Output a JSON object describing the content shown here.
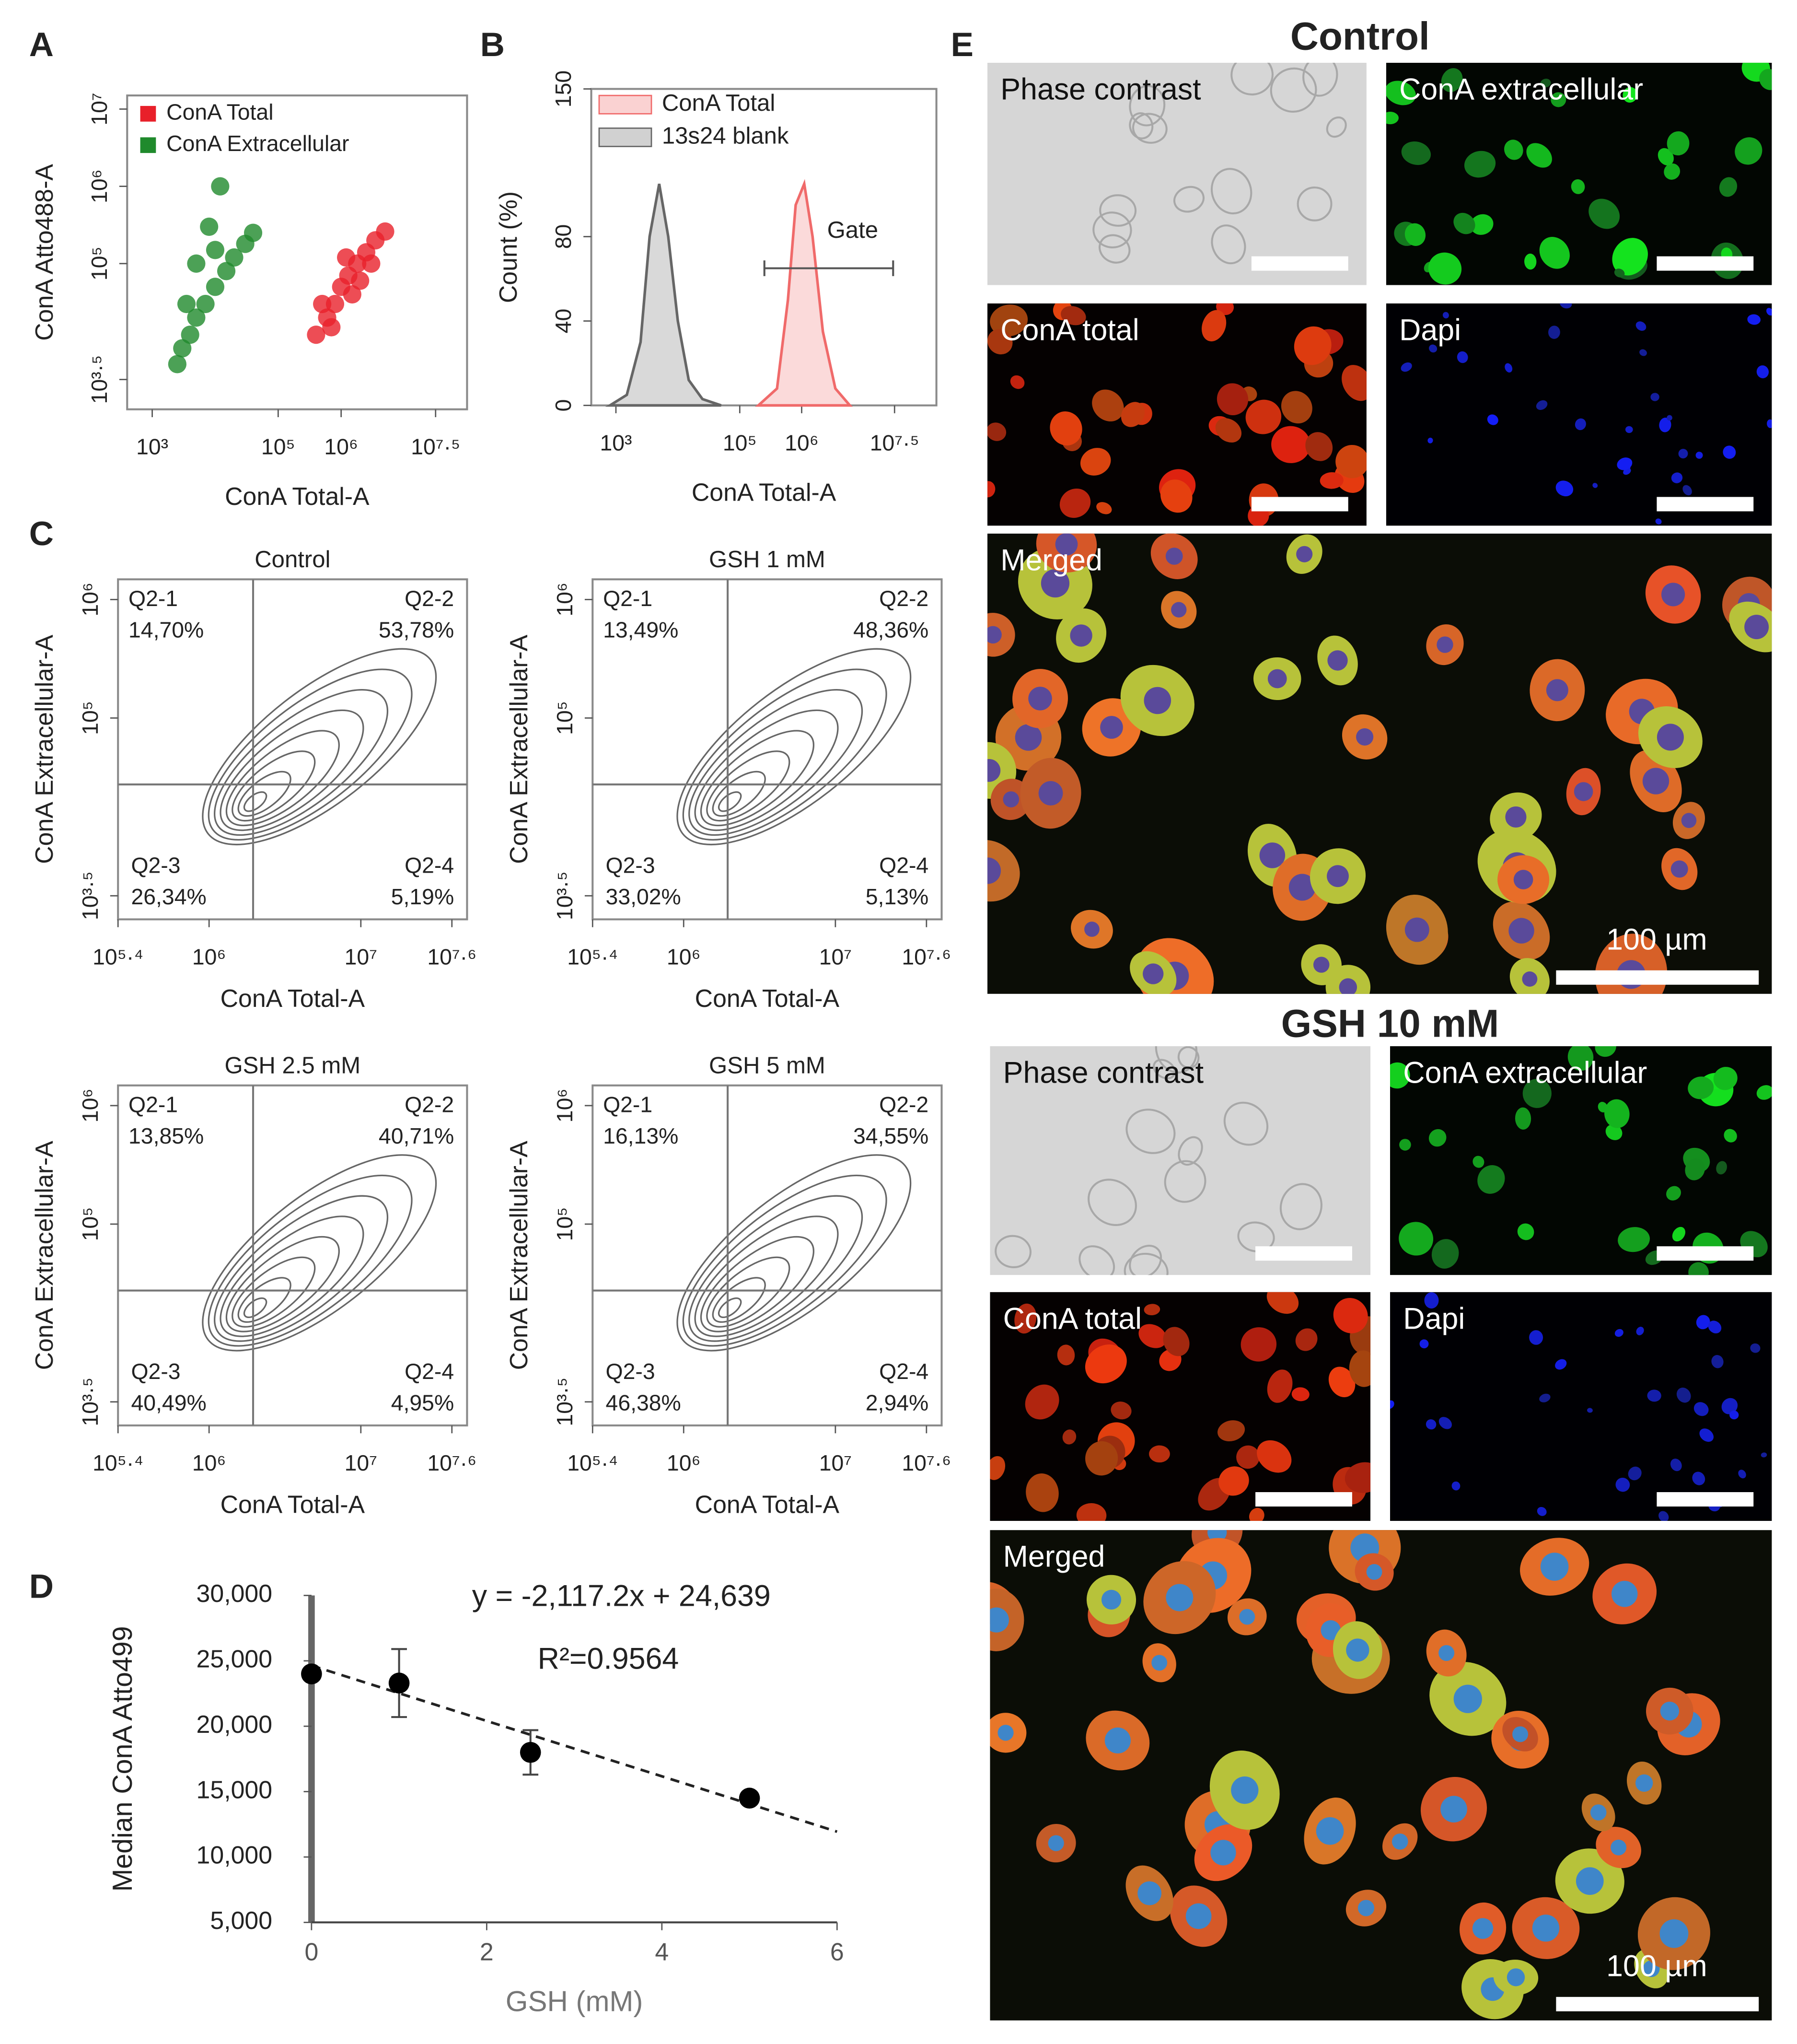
{
  "panel_labels": [
    "A",
    "B",
    "C",
    "D",
    "E"
  ],
  "chart_data": [
    {
      "type": "scatter",
      "x_label": "ConA Total-A",
      "y_label": "ConA Atto488-A",
      "xscale": "log",
      "yscale": "log",
      "xlim": [
        400,
        100000000
      ],
      "ylim": [
        1300,
        15000000
      ],
      "xticks": [
        {
          "value": 1000,
          "label": "10³"
        },
        {
          "value": 100000,
          "label": "10⁵"
        },
        {
          "value": 1000000,
          "label": "10⁶"
        },
        {
          "value": 31622777,
          "label": "10⁷·⁵"
        }
      ],
      "yticks": [
        {
          "value": 3162,
          "label": "10³·⁵"
        },
        {
          "value": 100000,
          "label": "10⁵"
        },
        {
          "value": 1000000,
          "label": "10⁶"
        },
        {
          "value": 10000000,
          "label": "10⁷"
        }
      ],
      "legend": "upper left",
      "series": [
        {
          "name": "ConA Total",
          "color": "#e8202a",
          "x": [
            400000,
            600000,
            800000,
            1000000,
            1300000,
            1800000,
            2500000,
            3500000,
            5000000,
            700000,
            1500000,
            2000000,
            500000,
            1200000,
            3000000
          ],
          "values": [
            12000,
            20000,
            30000,
            50000,
            70000,
            100000,
            140000,
            200000,
            260000,
            15000,
            40000,
            60000,
            30000,
            120000,
            100000
          ]
        },
        {
          "name": "ConA Extracellular",
          "color": "#1f8a2c",
          "x": [
            2500,
            3000,
            4000,
            5000,
            7000,
            10000,
            15000,
            20000,
            30000,
            40000,
            5000,
            8000,
            12000,
            3500,
            10000
          ],
          "values": [
            5000,
            8000,
            12000,
            20000,
            30000,
            50000,
            80000,
            120000,
            180000,
            250000,
            100000,
            300000,
            1000000,
            30000,
            150000
          ]
        }
      ]
    },
    {
      "type": "line",
      "x_label": "ConA Total-A",
      "y_label": "Count (%)",
      "xscale": "log",
      "xlim": [
        400,
        150000000
      ],
      "ylim": [
        0,
        150
      ],
      "xticks": [
        {
          "value": 1000,
          "label": "10³"
        },
        {
          "value": 100000,
          "label": "10⁵"
        },
        {
          "value": 1000000,
          "label": "10⁶"
        },
        {
          "value": 31622777,
          "label": "10⁷·⁵"
        }
      ],
      "yticks": [
        0,
        40,
        80,
        150
      ],
      "legend": "upper left",
      "series": [
        {
          "name": "ConA Total",
          "color": "#f06a6a",
          "x": [
            200000,
            400000,
            600000,
            800000,
            1100000,
            1500000,
            2200000,
            3500000,
            6000000
          ],
          "values": [
            0,
            8,
            50,
            95,
            105,
            80,
            35,
            8,
            0
          ]
        },
        {
          "name": "13s24 blank",
          "color": "#666666",
          "x": [
            800,
            1500,
            2500,
            3500,
            5000,
            7000,
            10000,
            15000,
            25000,
            50000
          ],
          "values": [
            0,
            5,
            30,
            80,
            105,
            80,
            40,
            12,
            3,
            0
          ]
        }
      ],
      "gate": {
        "label": "Gate",
        "range": [
          250000,
          30000000
        ],
        "value": 65
      }
    },
    {
      "type": "contour",
      "title": "Control",
      "x_label": "ConA Total-A",
      "y_label": "ConA Extracellular-A",
      "xscale": "log",
      "yscale": "log",
      "xlim": [
        251189,
        50118723
      ],
      "ylim": [
        2000,
        1480000
      ],
      "xticks": [
        {
          "value": 251189,
          "label": "10⁵·⁴"
        },
        {
          "value": 1000000,
          "label": "10⁶"
        },
        {
          "value": 10000000,
          "label": "10⁷"
        },
        {
          "value": 39810717,
          "label": "10⁷·⁶"
        }
      ],
      "yticks": [
        {
          "value": 3162,
          "label": "10³·⁵"
        },
        {
          "value": 100000,
          "label": "10⁵"
        },
        {
          "value": 1000000,
          "label": "10⁶"
        }
      ],
      "gate_x": 1950000,
      "gate_y": 27500,
      "quadrants": [
        "Q2-1",
        "Q2-2",
        "Q2-3",
        "Q2-4"
      ],
      "values": [
        14.7,
        53.78,
        26.34,
        5.19
      ],
      "value_labels": [
        "14,70%",
        "53,78%",
        "26,34%",
        "5,19%"
      ]
    },
    {
      "type": "contour",
      "title": "GSH 1 mM",
      "x_label": "ConA Total-A",
      "y_label": "ConA Extracellular-A",
      "xscale": "log",
      "yscale": "log",
      "xlim": [
        251189,
        50118723
      ],
      "ylim": [
        2000,
        1480000
      ],
      "xticks": [
        {
          "value": 251189,
          "label": "10⁵·⁴"
        },
        {
          "value": 1000000,
          "label": "10⁶"
        },
        {
          "value": 10000000,
          "label": "10⁷"
        },
        {
          "value": 39810717,
          "label": "10⁷·⁶"
        }
      ],
      "yticks": [
        {
          "value": 3162,
          "label": "10³·⁵"
        },
        {
          "value": 100000,
          "label": "10⁵"
        },
        {
          "value": 1000000,
          "label": "10⁶"
        }
      ],
      "gate_x": 1950000,
      "gate_y": 27500,
      "quadrants": [
        "Q2-1",
        "Q2-2",
        "Q2-3",
        "Q2-4"
      ],
      "values": [
        13.49,
        48.36,
        33.02,
        5.13
      ],
      "value_labels": [
        "13,49%",
        "48,36%",
        "33,02%",
        "5,13%"
      ]
    },
    {
      "type": "contour",
      "title": "GSH 2.5 mM",
      "x_label": "ConA Total-A",
      "y_label": "ConA Extracellular-A",
      "xscale": "log",
      "yscale": "log",
      "xlim": [
        251189,
        50118723
      ],
      "ylim": [
        2000,
        1480000
      ],
      "xticks": [
        {
          "value": 251189,
          "label": "10⁵·⁴"
        },
        {
          "value": 1000000,
          "label": "10⁶"
        },
        {
          "value": 10000000,
          "label": "10⁷"
        },
        {
          "value": 39810717,
          "label": "10⁷·⁶"
        }
      ],
      "yticks": [
        {
          "value": 3162,
          "label": "10³·⁵"
        },
        {
          "value": 100000,
          "label": "10⁵"
        },
        {
          "value": 1000000,
          "label": "10⁶"
        }
      ],
      "gate_x": 1950000,
      "gate_y": 27500,
      "quadrants": [
        "Q2-1",
        "Q2-2",
        "Q2-3",
        "Q2-4"
      ],
      "values": [
        13.85,
        40.71,
        40.49,
        4.95
      ],
      "value_labels": [
        "13,85%",
        "40,71%",
        "40,49%",
        "4,95%"
      ]
    },
    {
      "type": "contour",
      "title": "GSH 5 mM",
      "x_label": "ConA Total-A",
      "y_label": "ConA Extracellular-A",
      "xscale": "log",
      "yscale": "log",
      "xlim": [
        251189,
        50118723
      ],
      "ylim": [
        2000,
        1480000
      ],
      "xticks": [
        {
          "value": 251189,
          "label": "10⁵·⁴"
        },
        {
          "value": 1000000,
          "label": "10⁶"
        },
        {
          "value": 10000000,
          "label": "10⁷"
        },
        {
          "value": 39810717,
          "label": "10⁷·⁶"
        }
      ],
      "yticks": [
        {
          "value": 3162,
          "label": "10³·⁵"
        },
        {
          "value": 100000,
          "label": "10⁵"
        },
        {
          "value": 1000000,
          "label": "10⁶"
        }
      ],
      "gate_x": 1950000,
      "gate_y": 27500,
      "quadrants": [
        "Q2-1",
        "Q2-2",
        "Q2-3",
        "Q2-4"
      ],
      "values": [
        16.13,
        34.55,
        46.38,
        2.94
      ],
      "value_labels": [
        "16,13%",
        "34,55%",
        "46,38%",
        "2,94%"
      ]
    },
    {
      "type": "scatter",
      "x_label": "GSH (mM)",
      "y_label": "Median ConA Atto499",
      "xlim": [
        0,
        6
      ],
      "ylim": [
        5000,
        30000
      ],
      "xticks": [
        0,
        2,
        4,
        6
      ],
      "yticks": [
        {
          "value": 5000,
          "label": "5,000"
        },
        {
          "value": 10000,
          "label": "10,000"
        },
        {
          "value": 15000,
          "label": "15,000"
        },
        {
          "value": 20000,
          "label": "20,000"
        },
        {
          "value": 25000,
          "label": "25,000"
        },
        {
          "value": 30000,
          "label": "30,000"
        }
      ],
      "color": "#000000",
      "x": [
        0,
        1,
        2.5,
        5
      ],
      "values": [
        24000,
        23300,
        18000,
        14500
      ],
      "errors": [
        null,
        2600,
        1700,
        null
      ],
      "trendline": {
        "equation": "y = -2,117.2x + 24,639",
        "slope": -2117.2,
        "intercept": 24639,
        "r2_label": "R²=0.9564"
      }
    }
  ],
  "micrographs": [
    {
      "title": "Control",
      "panels": [
        "Phase contrast",
        "ConA extracellular",
        "ConA total",
        "Dapi",
        "Merged"
      ],
      "scale_label": "100 µm"
    },
    {
      "title": "GSH 10 mM",
      "panels": [
        "Phase contrast",
        "ConA extracellular",
        "ConA total",
        "Dapi",
        "Merged"
      ],
      "scale_label": "100 µm"
    }
  ]
}
